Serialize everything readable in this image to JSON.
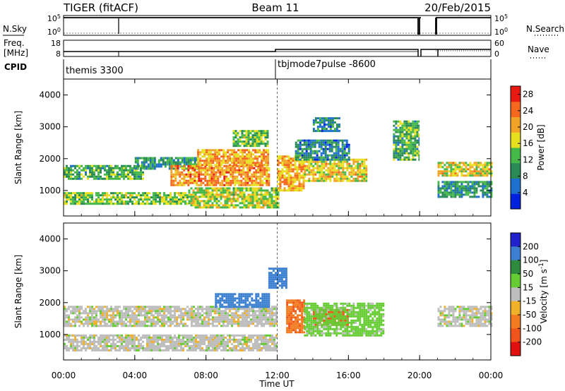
{
  "header": {
    "title": "TIGER (fitACF)",
    "beam": "Beam 11",
    "date": "20/Feb/2015"
  },
  "side_labels": {
    "nsky": "N.Sky",
    "freq_line1": "Freq.",
    "freq_line2": "[MHz]",
    "cpid": "CPID",
    "nsearch": "N.Search",
    "nave": "Nave"
  },
  "top_panels": {
    "nsky_ticks": [
      "10^5",
      "10^0"
    ],
    "nsearch_ticks": [
      "10^5",
      "10^0"
    ],
    "freq_ticks": [
      "18",
      "8"
    ],
    "nave_ticks": [
      "60",
      "0"
    ],
    "cpid_labels": [
      {
        "text": "themis 3300",
        "start_hour": 0
      },
      {
        "text": "tbjmode7pulse -8600",
        "start_hour": 12
      }
    ]
  },
  "chart_data": [
    {
      "type": "heatmap",
      "ylabel": "Slant Range [km]",
      "xlabel": "",
      "x_range_hours": [
        0,
        24
      ],
      "ylim": [
        200,
        4500
      ],
      "y_ticks": [
        1000,
        2000,
        3000,
        4000
      ],
      "colorbar": {
        "label": "Power [dB]",
        "ticks": [
          4,
          8,
          12,
          16,
          20,
          24,
          28
        ],
        "range": [
          0,
          30
        ],
        "colors": [
          "#0022dd",
          "#1d6fd0",
          "#2a8a55",
          "#45b84a",
          "#e7e01e",
          "#f0a326",
          "#f4671d",
          "#e81a12"
        ]
      },
      "echo_regions": [
        {
          "t0": 0.0,
          "t1": 7.0,
          "r0": 600,
          "r1": 950,
          "value": 14
        },
        {
          "t0": 0.0,
          "t1": 4.5,
          "r0": 1400,
          "r1": 1800,
          "value": 12
        },
        {
          "t0": 4.0,
          "t1": 7.5,
          "r0": 1700,
          "r1": 2050,
          "value": 10
        },
        {
          "t0": 6.0,
          "t1": 11.5,
          "r0": 1200,
          "r1": 1800,
          "value": 22
        },
        {
          "t0": 7.5,
          "t1": 11.5,
          "r0": 1800,
          "r1": 2300,
          "value": 20
        },
        {
          "t0": 9.5,
          "t1": 11.5,
          "r0": 2400,
          "r1": 2900,
          "value": 14
        },
        {
          "t0": 7.0,
          "t1": 12.0,
          "r0": 500,
          "r1": 1100,
          "value": 16
        },
        {
          "t0": 12.0,
          "t1": 13.5,
          "r0": 1000,
          "r1": 2100,
          "value": 20
        },
        {
          "t0": 13.5,
          "t1": 17.0,
          "r0": 1300,
          "r1": 2000,
          "value": 18
        },
        {
          "t0": 13.0,
          "t1": 16.0,
          "r0": 2000,
          "r1": 2600,
          "value": 8
        },
        {
          "t0": 14.0,
          "t1": 15.5,
          "r0": 2900,
          "r1": 3300,
          "value": 8
        },
        {
          "t0": 18.5,
          "t1": 20.0,
          "r0": 2000,
          "r1": 3200,
          "value": 12
        },
        {
          "t0": 21.0,
          "t1": 24.0,
          "r0": 1500,
          "r1": 1900,
          "value": 18
        },
        {
          "t0": 21.0,
          "t1": 24.0,
          "r0": 800,
          "r1": 1300,
          "value": 10
        }
      ]
    },
    {
      "type": "heatmap",
      "ylabel": "Slant Range [km]",
      "xlabel": "Time UT",
      "x_ticks": [
        "00:00",
        "04:00",
        "08:00",
        "12:00",
        "16:00",
        "20:00",
        "00:00"
      ],
      "x_range_hours": [
        0,
        24
      ],
      "ylim": [
        200,
        4500
      ],
      "y_ticks": [
        1000,
        2000,
        3000,
        4000
      ],
      "colorbar": {
        "label": "Velocity [m s^-1]",
        "ticks": [
          200,
          100,
          50,
          15,
          -15,
          -50,
          -100,
          -200
        ],
        "colors": [
          "#2222cc",
          "#3b7fd0",
          "#2e8b3d",
          "#66cc33",
          "#bdbdbd",
          "#f0b12a",
          "#f27b1f",
          "#f1541b",
          "#e01010"
        ]
      },
      "echo_regions": [
        {
          "t0": 0.0,
          "t1": 12.0,
          "r0": 500,
          "r1": 1000,
          "value": 0
        },
        {
          "t0": 0.0,
          "t1": 12.0,
          "r0": 1300,
          "r1": 1900,
          "value": 0
        },
        {
          "t0": 8.5,
          "t1": 11.5,
          "r0": 1900,
          "r1": 2300,
          "value": 180
        },
        {
          "t0": 11.5,
          "t1": 12.5,
          "r0": 2500,
          "r1": 3100,
          "value": 180
        },
        {
          "t0": 12.5,
          "t1": 13.5,
          "r0": 1100,
          "r1": 2100,
          "value": -90
        },
        {
          "t0": 14.0,
          "t1": 16.0,
          "r0": 1300,
          "r1": 1800,
          "value": -180
        },
        {
          "t0": 13.5,
          "t1": 18.0,
          "r0": 1000,
          "r1": 2000,
          "value": 30
        },
        {
          "t0": 21.0,
          "t1": 24.0,
          "r0": 1300,
          "r1": 1900,
          "value": 0
        }
      ]
    }
  ]
}
